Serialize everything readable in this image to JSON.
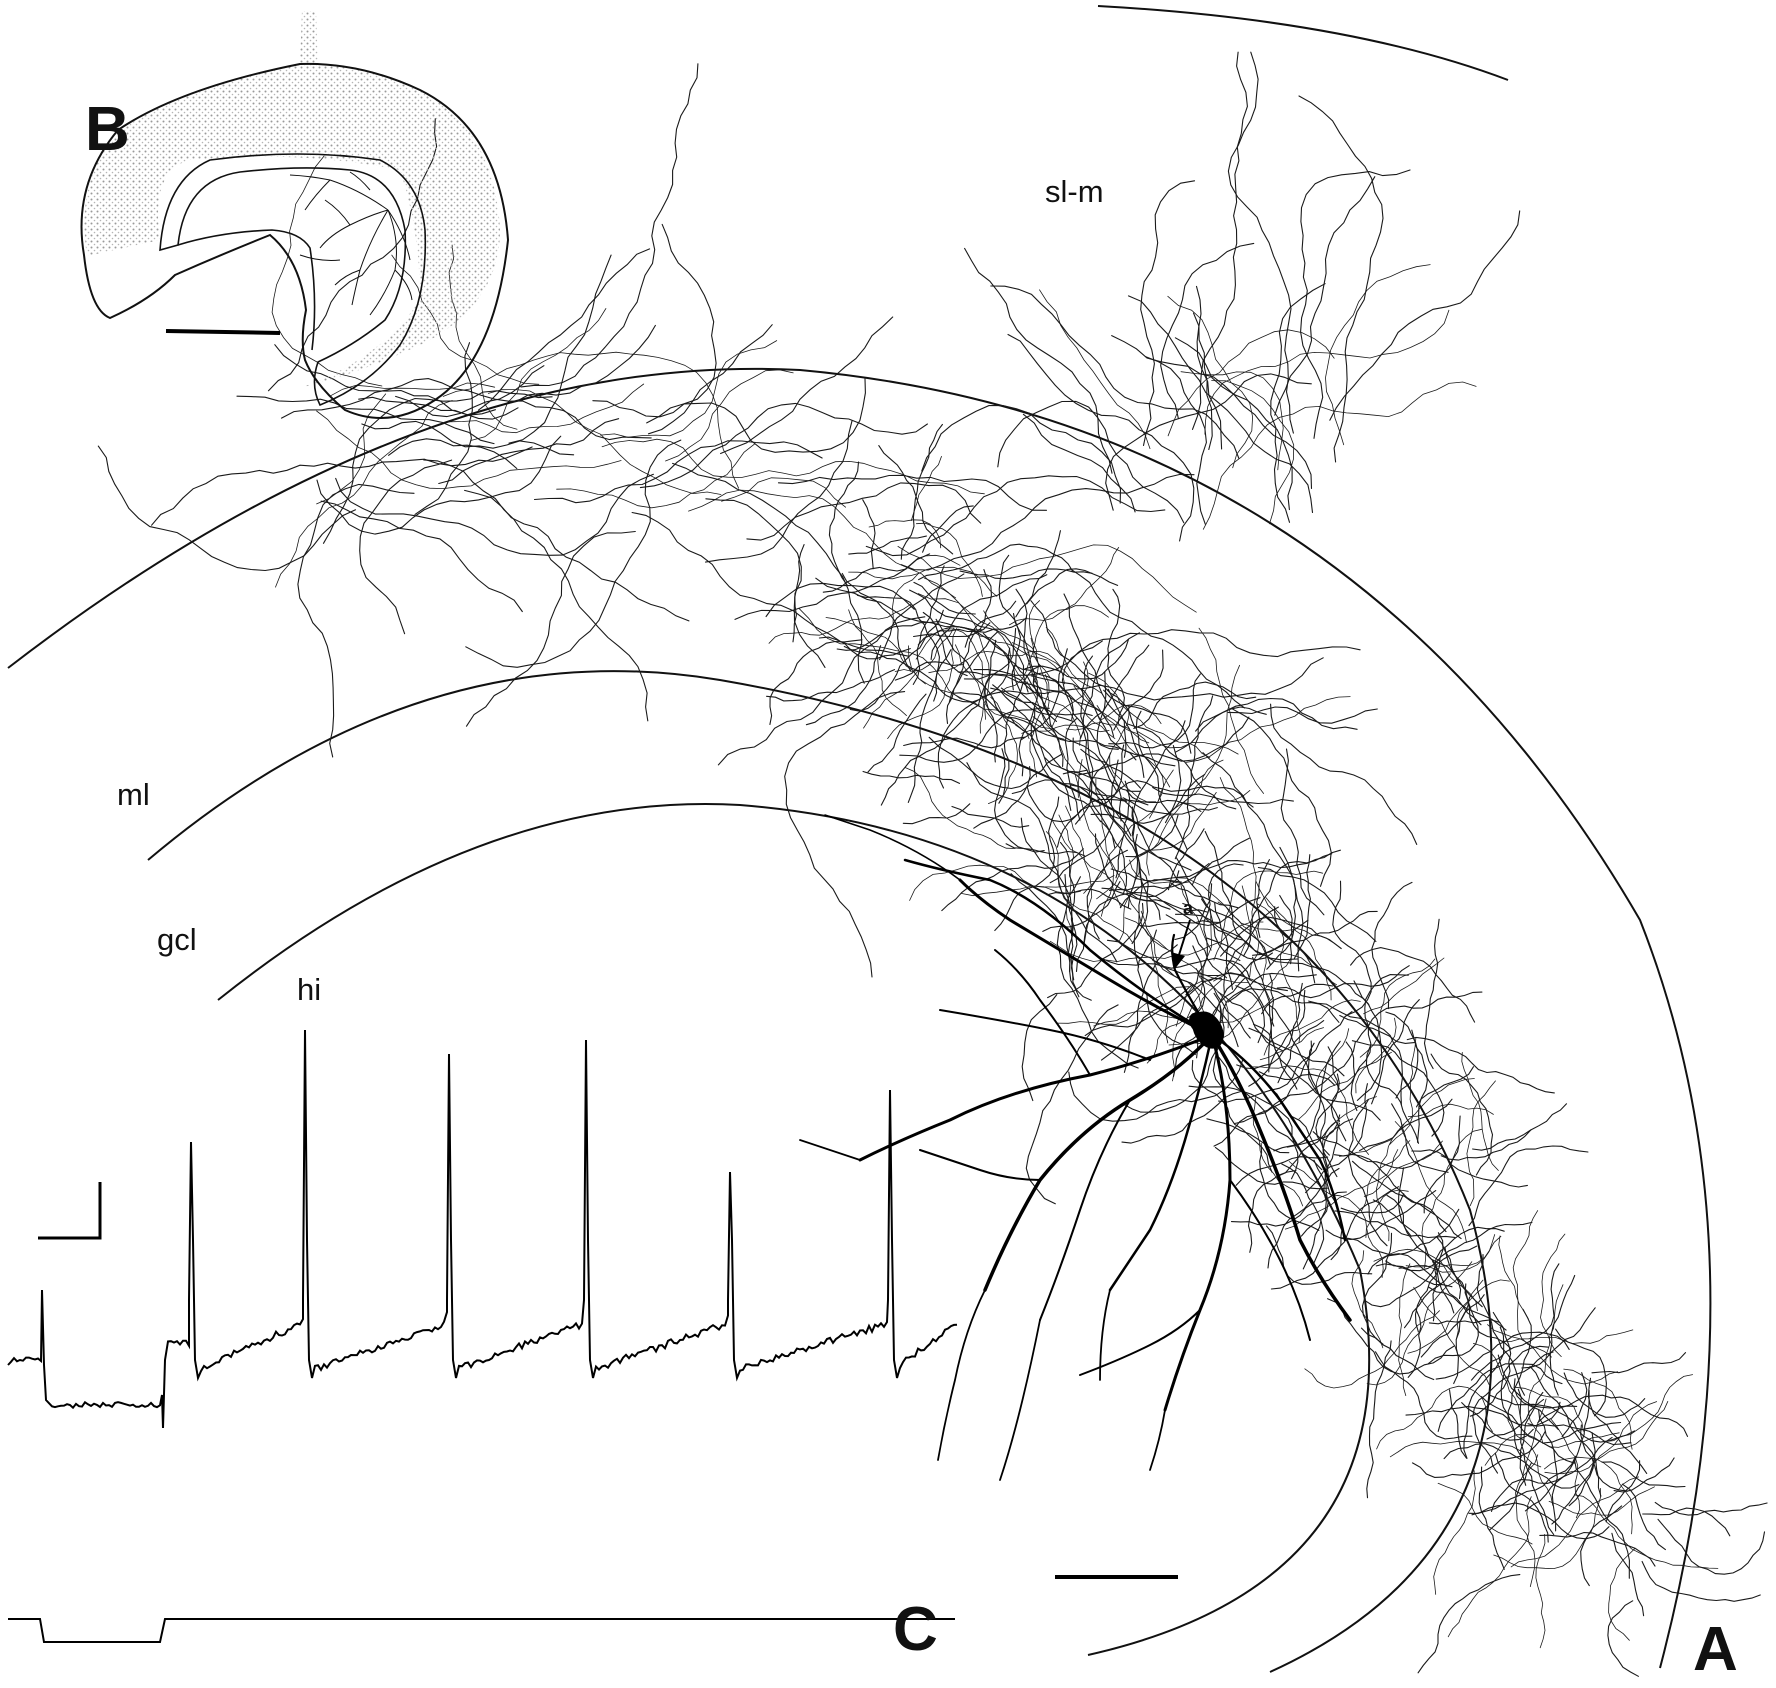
{
  "panels": {
    "a": "A",
    "b": "B",
    "c": "C"
  },
  "layers": {
    "ml": "ml",
    "gcl": "gcl",
    "hi": "hi",
    "slm": "sl-m"
  },
  "marker": "a",
  "colors": {
    "ink": "#111111",
    "stipple": "#bdbdbd",
    "paper": "#ffffff"
  }
}
